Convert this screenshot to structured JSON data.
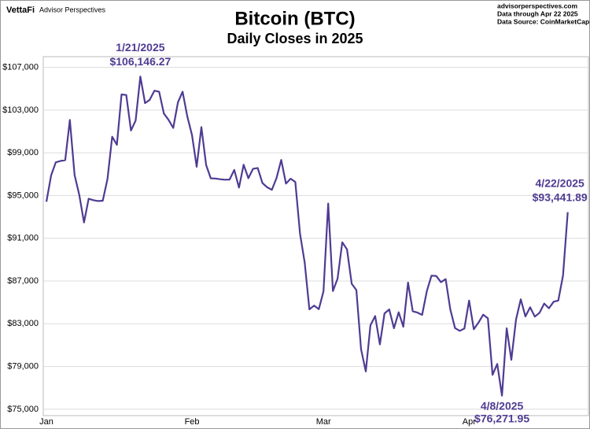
{
  "header": {
    "brand": "VettaFi",
    "publisher": "Advisor Perspectives",
    "site": "advisorperspectives.com",
    "data_through": "Data through Apr 22 2025",
    "source": "Data Source: CoinMarketCap"
  },
  "chart_data": {
    "type": "line",
    "title": "Bitcoin (BTC)",
    "subtitle": "Daily Closes in 2025",
    "color": "#4f3b92",
    "grid": true,
    "ylim": [
      74400,
      108000
    ],
    "yticks": [
      {
        "value": 75000,
        "label": "$75,000"
      },
      {
        "value": 79000,
        "label": "$79,000"
      },
      {
        "value": 83000,
        "label": "$83,000"
      },
      {
        "value": 87000,
        "label": "$87,000"
      },
      {
        "value": 91000,
        "label": "$91,000"
      },
      {
        "value": 95000,
        "label": "$95,000"
      },
      {
        "value": 99000,
        "label": "$99,000"
      },
      {
        "value": 103000,
        "label": "$103,000"
      },
      {
        "value": 107000,
        "label": "$107,000"
      }
    ],
    "categories": [
      "Jan",
      null,
      null,
      null,
      null,
      null,
      null,
      null,
      null,
      null,
      null,
      null,
      null,
      null,
      null,
      null,
      null,
      null,
      null,
      null,
      null,
      null,
      null,
      null,
      null,
      null,
      null,
      null,
      null,
      null,
      null,
      "Feb",
      null,
      null,
      null,
      null,
      null,
      null,
      null,
      null,
      null,
      null,
      null,
      null,
      null,
      null,
      null,
      null,
      null,
      null,
      null,
      null,
      null,
      null,
      null,
      null,
      null,
      null,
      null,
      "Mar",
      null,
      null,
      null,
      null,
      null,
      null,
      null,
      null,
      null,
      null,
      null,
      null,
      null,
      null,
      null,
      null,
      null,
      null,
      null,
      null,
      null,
      null,
      null,
      null,
      null,
      null,
      null,
      null,
      null,
      null,
      "Apr",
      null,
      null,
      null,
      null,
      null,
      null,
      null,
      null,
      null,
      null,
      null,
      null,
      null,
      null,
      null,
      null,
      null,
      null,
      null,
      null,
      null
    ],
    "values": [
      94420,
      96887,
      98108,
      98237,
      98315,
      102078,
      96923,
      95043,
      92484,
      94701,
      94566,
      94488,
      94516,
      96534,
      100504,
      99756,
      104462,
      104408,
      101089,
      102016,
      106146.27,
      103653,
      103960,
      104819,
      104714,
      102682,
      102087,
      101332,
      103733,
      104722,
      102405,
      100655,
      97688,
      101405,
      97871,
      96615,
      96593,
      96529,
      96482,
      96500,
      97400,
      95747,
      97885,
      96623,
      97508,
      97580,
      96175,
      95773,
      95539,
      96635,
      98333,
      96125,
      96577,
      96273,
      91418,
      88736,
      84347,
      84704,
      84373,
      86031,
      94248,
      86065,
      87222,
      90623,
      89961,
      86742,
      86154,
      80601,
      78532,
      82862,
      83722,
      81066,
      83969,
      84343,
      82579,
      84075,
      82718,
      86854,
      84167,
      84043,
      83832,
      86054,
      87498,
      87471,
      86900,
      87177,
      84353,
      82597,
      82334,
      82548,
      85169,
      82485,
      83102,
      83843,
      83504,
      78214,
      79235,
      76271.95,
      82573,
      79626,
      83404,
      85287,
      83684,
      84542,
      83668,
      84033,
      84895,
      84450,
      85063,
      85174,
      87518,
      93441.89
    ],
    "value_labels": [
      null,
      null,
      null,
      null,
      null,
      null,
      null,
      null,
      null,
      null,
      null,
      null,
      null,
      null,
      null,
      null,
      null,
      null,
      null,
      null,
      "$106,146.27",
      null,
      null,
      null,
      null,
      null,
      null,
      null,
      null,
      null,
      null,
      null,
      null,
      null,
      null,
      null,
      null,
      null,
      null,
      null,
      null,
      null,
      null,
      null,
      null,
      null,
      null,
      null,
      null,
      null,
      null,
      null,
      null,
      null,
      null,
      null,
      null,
      null,
      null,
      null,
      null,
      null,
      null,
      null,
      null,
      null,
      null,
      null,
      null,
      null,
      null,
      null,
      null,
      null,
      null,
      null,
      null,
      null,
      null,
      null,
      null,
      null,
      null,
      null,
      null,
      null,
      null,
      null,
      null,
      null,
      null,
      null,
      null,
      null,
      null,
      null,
      null,
      "$76,271.95",
      null,
      null,
      null,
      null,
      null,
      null,
      null,
      null,
      null,
      null,
      null,
      null,
      null,
      "$93,441.89"
    ],
    "annotation_dates": [
      null,
      null,
      null,
      null,
      null,
      null,
      null,
      null,
      null,
      null,
      null,
      null,
      null,
      null,
      null,
      null,
      null,
      null,
      null,
      null,
      "1/21/2025",
      null,
      null,
      null,
      null,
      null,
      null,
      null,
      null,
      null,
      null,
      null,
      null,
      null,
      null,
      null,
      null,
      null,
      null,
      null,
      null,
      null,
      null,
      null,
      null,
      null,
      null,
      null,
      null,
      null,
      null,
      null,
      null,
      null,
      null,
      null,
      null,
      null,
      null,
      null,
      null,
      null,
      null,
      null,
      null,
      null,
      null,
      null,
      null,
      null,
      null,
      null,
      null,
      null,
      null,
      null,
      null,
      null,
      null,
      null,
      null,
      null,
      null,
      null,
      null,
      null,
      null,
      null,
      null,
      null,
      null,
      null,
      null,
      null,
      null,
      null,
      null,
      "4/8/2025",
      null,
      null,
      null,
      null,
      null,
      null,
      null,
      null,
      null,
      null,
      null,
      null,
      null,
      "4/22/2025"
    ]
  }
}
